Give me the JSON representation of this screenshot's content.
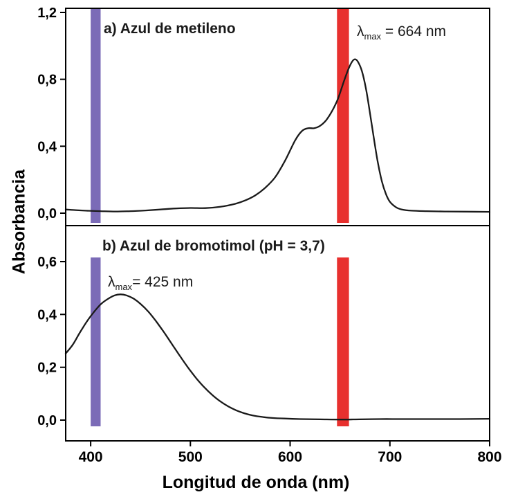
{
  "chart_data": {
    "type": "line",
    "title": "",
    "xlabel": "Longitud de onda (nm)",
    "ylabel": "Absorbancia",
    "grid": false,
    "legend": "none",
    "curve_color": "#1a1a1a",
    "x_range": [
      375,
      800
    ],
    "x_ticks": [
      400,
      500,
      600,
      700,
      800
    ],
    "x_tick_labels": [
      "400",
      "500",
      "600",
      "700",
      "800"
    ],
    "bands": [
      {
        "name": "violet-band",
        "nm_start": 400,
        "nm_end": 410,
        "color": "#7b6bb7"
      },
      {
        "name": "red-band",
        "nm_start": 647,
        "nm_end": 659,
        "color": "#e8302e"
      }
    ],
    "panels": [
      {
        "id": "a",
        "label": "a) Azul de metileno",
        "series_name": "Azul de metileno",
        "annotation_symbol": "λ",
        "annotation_sub": "max",
        "annotation_rest": " = 664 nm",
        "lambda_max_nm": 664,
        "ylim": [
          -0.08,
          1.22
        ],
        "y_ticks": [
          0.0,
          0.4,
          0.8,
          1.2
        ],
        "y_tick_labels": [
          "0,0",
          "0,4",
          "0,8",
          "1,2"
        ],
        "points": [
          [
            375,
            0.022
          ],
          [
            385,
            0.018
          ],
          [
            395,
            0.015
          ],
          [
            410,
            0.012
          ],
          [
            425,
            0.01
          ],
          [
            440,
            0.012
          ],
          [
            455,
            0.016
          ],
          [
            470,
            0.022
          ],
          [
            485,
            0.028
          ],
          [
            500,
            0.031
          ],
          [
            515,
            0.03
          ],
          [
            530,
            0.038
          ],
          [
            545,
            0.056
          ],
          [
            555,
            0.076
          ],
          [
            565,
            0.106
          ],
          [
            575,
            0.152
          ],
          [
            585,
            0.215
          ],
          [
            595,
            0.315
          ],
          [
            605,
            0.435
          ],
          [
            612,
            0.492
          ],
          [
            618,
            0.508
          ],
          [
            624,
            0.508
          ],
          [
            630,
            0.522
          ],
          [
            636,
            0.555
          ],
          [
            642,
            0.61
          ],
          [
            648,
            0.685
          ],
          [
            654,
            0.79
          ],
          [
            658,
            0.855
          ],
          [
            662,
            0.905
          ],
          [
            665,
            0.92
          ],
          [
            668,
            0.905
          ],
          [
            672,
            0.848
          ],
          [
            676,
            0.745
          ],
          [
            680,
            0.6
          ],
          [
            684,
            0.445
          ],
          [
            688,
            0.3
          ],
          [
            692,
            0.19
          ],
          [
            696,
            0.115
          ],
          [
            700,
            0.068
          ],
          [
            706,
            0.036
          ],
          [
            712,
            0.022
          ],
          [
            722,
            0.015
          ],
          [
            737,
            0.012
          ],
          [
            755,
            0.01
          ],
          [
            775,
            0.009
          ],
          [
            800,
            0.008
          ]
        ]
      },
      {
        "id": "b",
        "label": "b) Azul de bromotimol (pH = 3,7)",
        "series_name": "Azul de bromotimol (pH = 3,7)",
        "annotation_symbol": "λ",
        "annotation_sub": "max",
        "annotation_rest": "= 425 nm",
        "lambda_max_nm": 425,
        "ylim": [
          -0.08,
          0.74
        ],
        "y_ticks": [
          0.0,
          0.2,
          0.4,
          0.6
        ],
        "y_tick_labels": [
          "0,0",
          "0,2",
          "0,4",
          "0,6"
        ],
        "points": [
          [
            375,
            0.252
          ],
          [
            382,
            0.285
          ],
          [
            389,
            0.33
          ],
          [
            396,
            0.372
          ],
          [
            403,
            0.408
          ],
          [
            410,
            0.438
          ],
          [
            417,
            0.458
          ],
          [
            424,
            0.472
          ],
          [
            430,
            0.476
          ],
          [
            436,
            0.472
          ],
          [
            443,
            0.46
          ],
          [
            450,
            0.44
          ],
          [
            458,
            0.41
          ],
          [
            466,
            0.372
          ],
          [
            474,
            0.33
          ],
          [
            482,
            0.285
          ],
          [
            490,
            0.24
          ],
          [
            498,
            0.197
          ],
          [
            506,
            0.158
          ],
          [
            514,
            0.124
          ],
          [
            522,
            0.095
          ],
          [
            530,
            0.071
          ],
          [
            538,
            0.052
          ],
          [
            546,
            0.037
          ],
          [
            554,
            0.026
          ],
          [
            562,
            0.018
          ],
          [
            572,
            0.012
          ],
          [
            582,
            0.008
          ],
          [
            594,
            0.006
          ],
          [
            610,
            0.004
          ],
          [
            630,
            0.003
          ],
          [
            650,
            0.002
          ],
          [
            670,
            0.003
          ],
          [
            690,
            0.004
          ],
          [
            710,
            0.004
          ],
          [
            740,
            0.004
          ],
          [
            770,
            0.004
          ],
          [
            800,
            0.005
          ]
        ]
      }
    ]
  }
}
